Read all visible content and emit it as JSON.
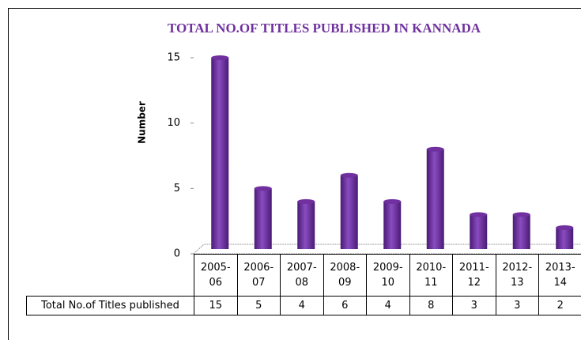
{
  "chart_data": {
    "type": "bar",
    "title": "TOTAL NO.OF TITLES PUBLISHED IN KANNADA",
    "y_label": "Number",
    "categories": [
      "2005-06",
      "2006-07",
      "2007-08",
      "2008-09",
      "2009-10",
      "2010-11",
      "2011-12",
      "2012-13",
      "2013-14"
    ],
    "series": [
      {
        "name": "Total No.of Titles published",
        "color": "#7030a0",
        "values": [
          15,
          5,
          4,
          6,
          4,
          8,
          3,
          3,
          2
        ]
      }
    ],
    "ylim": [
      0,
      15
    ],
    "yticks": [
      0,
      5,
      10,
      15
    ]
  }
}
